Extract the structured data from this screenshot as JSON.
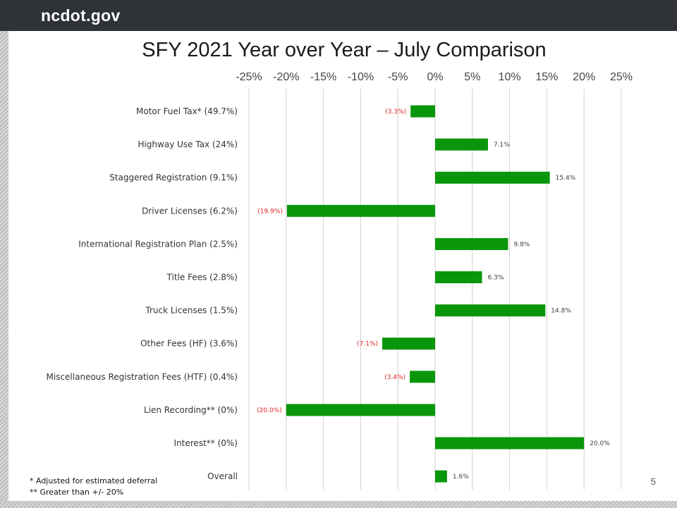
{
  "header": {
    "brand": "ncdot.gov"
  },
  "slide": {
    "title": "SFY 2021 Year over Year – July Comparison",
    "footnotes": [
      "*  Adjusted for estimated deferral",
      "** Greater than +/- 20%"
    ],
    "page_number": "5"
  },
  "colors": {
    "bar": "#0a960a",
    "negative_label": "#e02020",
    "positive_label": "#404040",
    "grid": "#d0d0d0",
    "header_bg": "#2f3237"
  },
  "chart_data": {
    "type": "bar",
    "orientation": "horizontal",
    "title": "SFY 2021 Year over Year – July Comparison",
    "xlim": [
      -25,
      25
    ],
    "x_ticks": [
      "-25%",
      "-20%",
      "-15%",
      "-10%",
      "-5%",
      "0%",
      "5%",
      "10%",
      "15%",
      "20%",
      "25%"
    ],
    "x_tick_values": [
      -25,
      -20,
      -15,
      -10,
      -5,
      0,
      5,
      10,
      15,
      20,
      25
    ],
    "axis_position": "top",
    "grid": true,
    "categories": [
      "Motor Fuel Tax* (49.7%)",
      "Highway Use Tax (24%)",
      "Staggered Registration (9.1%)",
      "Driver Licenses (6.2%)",
      "International Registration Plan (2.5%)",
      "Title Fees (2.8%)",
      "Truck Licenses (1.5%)",
      "Other Fees (HF) (3.6%)",
      "Miscellaneous Registration Fees (HTF) (0.4%)",
      "Lien Recording** (0%)",
      "Interest** (0%)",
      "Overall"
    ],
    "values": [
      -3.3,
      7.1,
      15.4,
      -19.9,
      9.8,
      6.3,
      14.8,
      -7.1,
      -3.4,
      -20.0,
      20.0,
      1.6
    ],
    "data_labels": [
      "(3.3%)",
      "7.1%",
      "15.4%",
      "(19.9%)",
      "9.8%",
      "6.3%",
      "14.8%",
      "(7.1%)",
      "(3.4%)",
      "(20.0%)",
      "20.0%",
      "1.6%"
    ]
  }
}
